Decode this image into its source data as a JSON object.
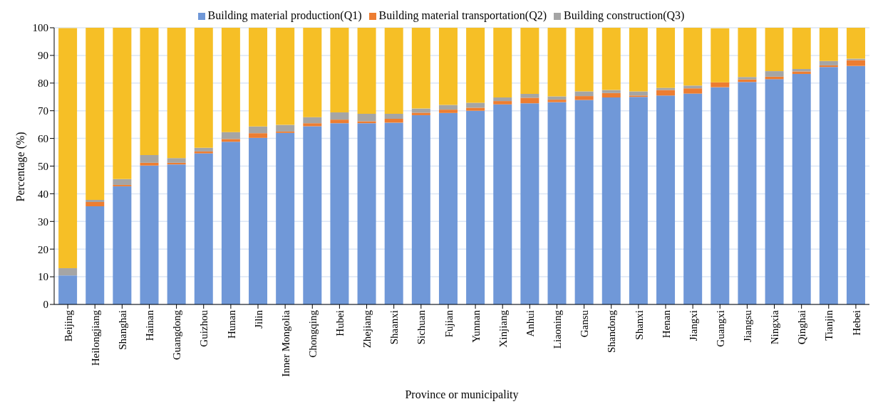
{
  "chart_data": {
    "type": "bar",
    "stacked": true,
    "xlabel": "Province or municipality",
    "ylabel": "Percentage (%)",
    "categories": [
      "Beijing",
      "Heilongjiang",
      "Shanghai",
      "Hainan",
      "Guangdong",
      "Guizhou",
      "Hunan",
      "Jilin",
      "Inner Mongolia",
      "Chongqing",
      "Hubei",
      "Zhejiang",
      "Shaanxi",
      "Sichuan",
      "Fujian",
      "Yunnan",
      "Xinjiang",
      "Anhui",
      "Liaoning",
      "Gansu",
      "Shandong",
      "Shanxi",
      "Henan",
      "Jiangxi",
      "Guangxi",
      "Jiangsu",
      "Ningxia",
      "Qinghai",
      "Tianjin",
      "Hebei"
    ],
    "series": [
      {
        "name": "Building material production(Q1)",
        "color": "#7098d8",
        "values": [
          10.5,
          35.5,
          42.7,
          50.2,
          50.6,
          54.6,
          58.8,
          60.2,
          62,
          64.4,
          65.5,
          65.5,
          65.7,
          68.4,
          69.2,
          70,
          72.3,
          72.7,
          73.1,
          73.9,
          74.8,
          75,
          75.5,
          76.2,
          78.5,
          80.4,
          81.4,
          83.3,
          85.8,
          86.2
        ]
      },
      {
        "name": "Building material transportation(Q2)",
        "color": "#ed7d31",
        "values": [
          null,
          1.5,
          0.5,
          1.0,
          0.6,
          0.7,
          1.0,
          1.7,
          0.5,
          1.1,
          1.3,
          0.7,
          1.4,
          0.9,
          1.2,
          1.1,
          1.2,
          2.0,
          0.9,
          1.4,
          1.6,
          0.5,
          2.0,
          1.9,
          1.8,
          0.9,
          0.9,
          0.9,
          0.6,
          2.1
        ]
      },
      {
        "name": "Building construction(Q3)",
        "color": "#a5a5a5",
        "values": [
          2.6,
          0.8,
          2.1,
          2.8,
          1.7,
          1.3,
          2.5,
          2.4,
          2.4,
          2.2,
          2.6,
          2.7,
          1.8,
          1.5,
          1.7,
          1.8,
          1.3,
          1.4,
          1.2,
          1.7,
          1.1,
          1.5,
          0.8,
          1.0,
          null,
          0.9,
          2.0,
          0.9,
          1.6,
          0.5
        ]
      },
      {
        "color": "#f6bf26",
        "values": [
          86.8,
          62.2,
          54.7,
          46,
          47.1,
          43.4,
          37.7,
          35.7,
          35.1,
          32.3,
          30.6,
          31.1,
          31.1,
          29.2,
          27.9,
          27.1,
          25.2,
          23.9,
          24.8,
          23,
          22.5,
          23,
          21.7,
          20.9,
          19.5,
          17.8,
          15.7,
          14.9,
          12,
          11.2
        ]
      }
    ],
    "ylim": [
      0,
      100
    ],
    "yticks": [
      0,
      10,
      20,
      30,
      40,
      50,
      60,
      70,
      80,
      90,
      100
    ],
    "grid": "y",
    "legend": "top"
  }
}
